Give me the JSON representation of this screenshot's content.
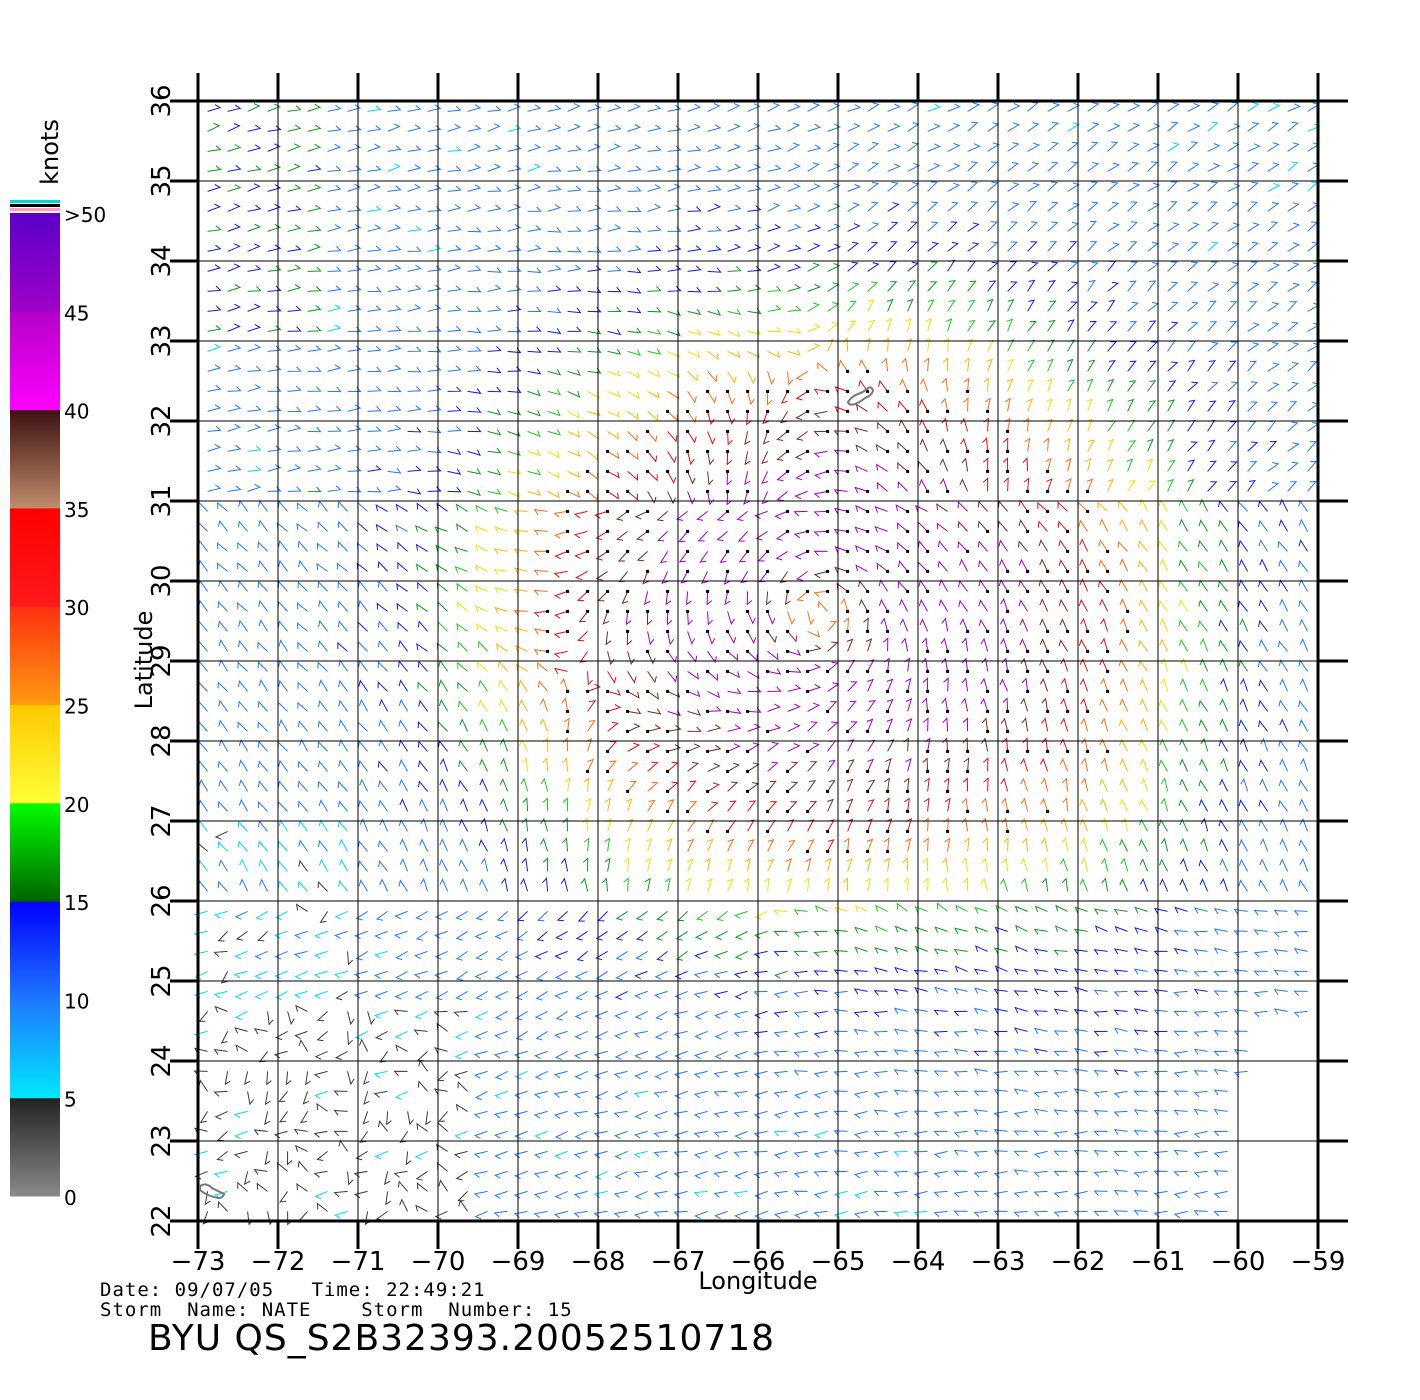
{
  "map": {
    "x_axis_label": "Longitude",
    "y_axis_label": "Latitude",
    "lon_range": [
      -73,
      -59
    ],
    "lat_range": [
      22,
      36
    ],
    "lon_ticks": [
      "−73",
      "−72",
      "−71",
      "−70",
      "−69",
      "−68",
      "−67",
      "−66",
      "−65",
      "−64",
      "−63",
      "−62",
      "−61",
      "−60",
      "−59"
    ],
    "lat_ticks": [
      "22",
      "23",
      "24",
      "25",
      "26",
      "27",
      "28",
      "29",
      "30",
      "31",
      "32",
      "33",
      "34",
      "35",
      "36"
    ],
    "grid": true,
    "storm_center": {
      "lon": -65.2,
      "lat": 29.6
    }
  },
  "colorbar": {
    "unit_label": "knots",
    "tick_labels": [
      "0",
      "5",
      "10",
      "15",
      "20",
      "25",
      "30",
      "35",
      "40",
      "45",
      ">50"
    ],
    "bands": [
      {
        "from": 0,
        "to": 5,
        "colors": [
          "#8a8a8a",
          "#222222"
        ]
      },
      {
        "from": 5,
        "to": 10,
        "colors": [
          "#00e8ff",
          "#1e78ff"
        ]
      },
      {
        "from": 10,
        "to": 15,
        "colors": [
          "#1e78ff",
          "#0000ff"
        ]
      },
      {
        "from": 15,
        "to": 20,
        "colors": [
          "#006400",
          "#00ff00"
        ]
      },
      {
        "from": 20,
        "to": 25,
        "colors": [
          "#ffff33",
          "#ffc800"
        ]
      },
      {
        "from": 25,
        "to": 30,
        "colors": [
          "#ff9a10",
          "#ff3010"
        ]
      },
      {
        "from": 30,
        "to": 35,
        "colors": [
          "#ff1a1a",
          "#ff0000"
        ]
      },
      {
        "from": 35,
        "to": 40,
        "colors": [
          "#c08c6a",
          "#3c1010"
        ]
      },
      {
        "from": 40,
        "to": 45,
        "colors": [
          "#ff00ff",
          "#b400c8"
        ]
      },
      {
        "from": 45,
        "to": 50,
        "colors": [
          "#a000c8",
          "#5a00c8"
        ]
      }
    ]
  },
  "footer": {
    "line1": "Date: 09/07/05   Time: 22:49:21",
    "line2": "Storm  Name: NATE    Storm  Number: 15",
    "title": "BYU  QS_S2B32393.20052510718"
  }
}
